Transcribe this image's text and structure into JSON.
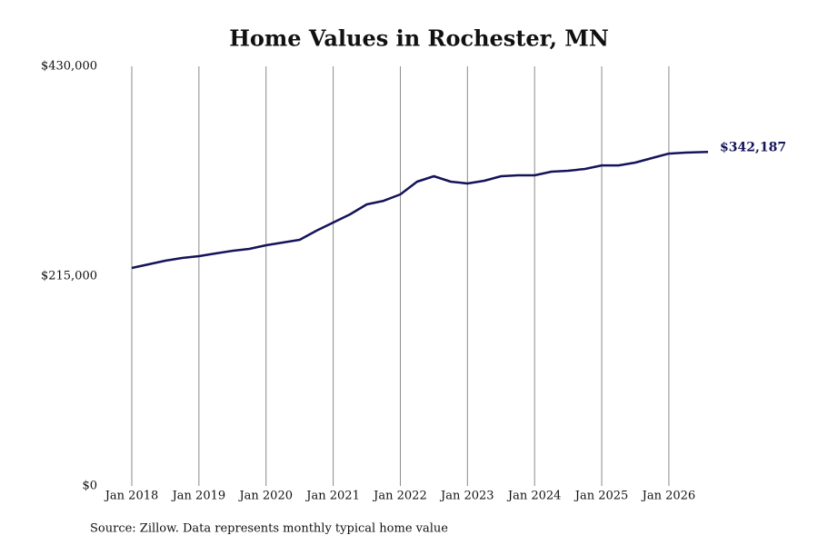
{
  "chart_data": {
    "type": "line",
    "title": "Home Values in Rochester, MN",
    "source": "Source: Zillow. Data represents monthly typical home value",
    "x": [
      "2018-01",
      "2018-04",
      "2018-07",
      "2018-10",
      "2019-01",
      "2019-04",
      "2019-07",
      "2019-10",
      "2020-01",
      "2020-04",
      "2020-07",
      "2020-10",
      "2021-01",
      "2021-04",
      "2021-07",
      "2021-10",
      "2022-01",
      "2022-04",
      "2022-07",
      "2022-10",
      "2023-01",
      "2023-04",
      "2023-07",
      "2023-10",
      "2024-01",
      "2024-04",
      "2024-07",
      "2024-10",
      "2025-01",
      "2025-04",
      "2025-07",
      "2025-10",
      "2026-01",
      "2026-04",
      "2026-08"
    ],
    "series": [
      {
        "color": "#14145a",
        "values": [
          223400,
          227100,
          230800,
          233600,
          235500,
          238300,
          241000,
          242900,
          246600,
          249400,
          252200,
          261500,
          269900,
          278300,
          288500,
          292200,
          298800,
          311800,
          317400,
          311800,
          309900,
          312700,
          317400,
          318300,
          318300,
          322000,
          323000,
          324800,
          328500,
          328500,
          331300,
          336000,
          340600,
          341600,
          342187
        ],
        "value_labels": [
          null,
          null,
          null,
          null,
          null,
          null,
          null,
          null,
          null,
          null,
          null,
          null,
          null,
          null,
          null,
          null,
          null,
          null,
          null,
          null,
          null,
          null,
          null,
          null,
          null,
          null,
          null,
          null,
          null,
          null,
          null,
          null,
          null,
          null,
          "$342,187"
        ]
      }
    ],
    "xlim": [
      "2018-01",
      "2026-08"
    ],
    "xticks": [
      {
        "value": "2018-01",
        "label": "Jan 2018"
      },
      {
        "value": "2019-01",
        "label": "Jan 2019"
      },
      {
        "value": "2020-01",
        "label": "Jan 2020"
      },
      {
        "value": "2021-01",
        "label": "Jan 2021"
      },
      {
        "value": "2022-01",
        "label": "Jan 2022"
      },
      {
        "value": "2023-01",
        "label": "Jan 2023"
      },
      {
        "value": "2024-01",
        "label": "Jan 2024"
      },
      {
        "value": "2025-01",
        "label": "Jan 2025"
      },
      {
        "value": "2026-01",
        "label": "Jan 2026"
      }
    ],
    "ylim": [
      0,
      430000
    ],
    "yticks": [
      {
        "value": 0,
        "label": "$0"
      },
      {
        "value": 215000,
        "label": "$215,000"
      },
      {
        "value": 430000,
        "label": "$430,000"
      }
    ],
    "grid": true
  }
}
